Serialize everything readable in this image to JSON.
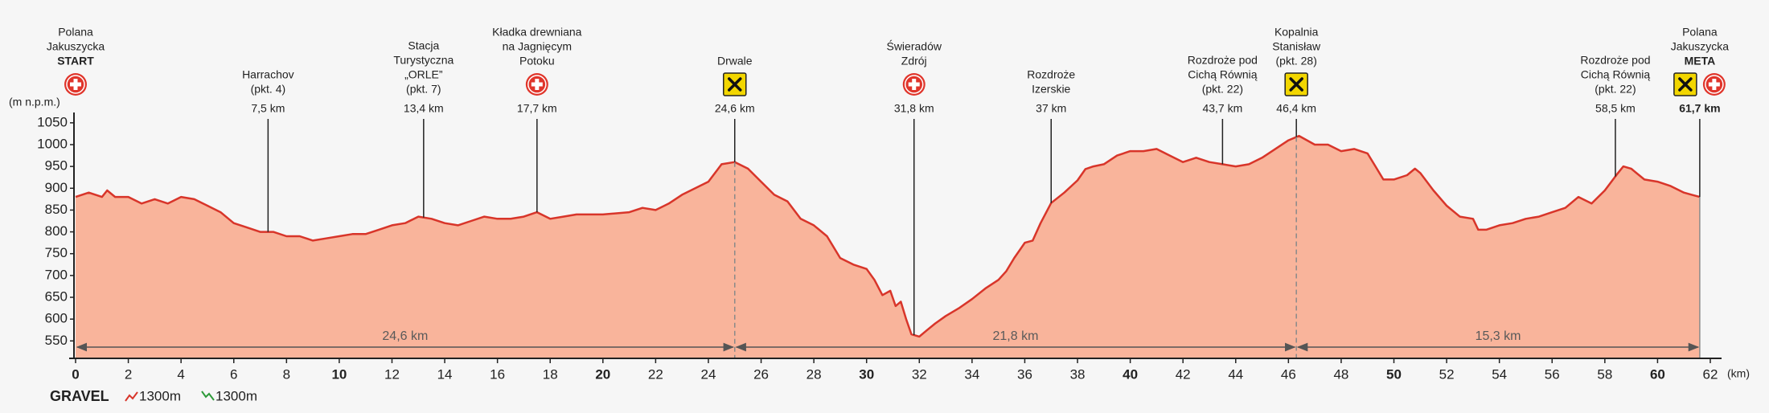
{
  "chart_data": {
    "type": "area",
    "y_label": "(m n.p.m.)",
    "x_label": "(km)",
    "x": [
      0,
      0.5,
      1,
      1.2,
      1.5,
      2,
      2.5,
      3,
      3.5,
      4,
      4.5,
      5,
      5.5,
      6,
      6.5,
      7,
      7.5,
      8,
      8.5,
      9,
      9.5,
      10,
      10.5,
      11,
      11.5,
      12,
      12.5,
      13,
      13.5,
      14,
      14.5,
      15,
      15.5,
      16,
      16.5,
      17,
      17.5,
      18,
      18.5,
      19,
      20,
      21,
      21.5,
      22,
      22.5,
      23,
      23.5,
      24,
      24.5,
      25,
      25.5,
      26,
      26.5,
      27,
      27.5,
      28,
      28.5,
      29,
      29.5,
      30,
      30.3,
      30.6,
      30.9,
      31.1,
      31.3,
      31.5,
      31.7,
      32,
      32.3,
      32.6,
      33,
      33.5,
      34,
      34.5,
      35,
      35.3,
      35.6,
      36,
      36.3,
      36.6,
      37,
      37.5,
      38,
      38.3,
      38.6,
      39,
      39.5,
      40,
      40.5,
      41,
      41.5,
      42,
      42.5,
      43,
      43.5,
      44,
      44.5,
      45,
      45.5,
      46,
      46.4,
      47,
      47.5,
      48,
      48.5,
      49,
      49.3,
      49.6,
      50,
      50.5,
      50.8,
      51,
      51.5,
      52,
      52.5,
      53,
      53.2,
      53.5,
      54,
      54.5,
      55,
      55.5,
      56,
      56.5,
      57,
      57.5,
      58,
      58.5,
      58.7,
      59,
      59.5,
      60,
      60.5,
      61,
      61.3,
      61.6
    ],
    "series": [
      {
        "name": "GRAVEL",
        "color": "#d8352a",
        "fill": "#f9b49b",
        "values": [
          880,
          890,
          880,
          895,
          880,
          880,
          865,
          875,
          865,
          880,
          875,
          860,
          845,
          820,
          810,
          800,
          800,
          790,
          790,
          780,
          785,
          790,
          795,
          795,
          805,
          815,
          820,
          835,
          830,
          820,
          815,
          825,
          835,
          830,
          830,
          835,
          845,
          830,
          835,
          840,
          840,
          845,
          855,
          850,
          865,
          885,
          900,
          915,
          955,
          960,
          945,
          915,
          885,
          870,
          830,
          815,
          790,
          740,
          725,
          715,
          690,
          655,
          665,
          630,
          640,
          600,
          565,
          560,
          575,
          590,
          607,
          625,
          646,
          670,
          690,
          710,
          740,
          775,
          780,
          820,
          866,
          890,
          918,
          944,
          950,
          955,
          975,
          985,
          985,
          990,
          975,
          960,
          970,
          960,
          955,
          950,
          955,
          970,
          990,
          1010,
          1020,
          1000,
          1000,
          985,
          990,
          980,
          950,
          920,
          920,
          930,
          945,
          935,
          895,
          860,
          835,
          830,
          805,
          805,
          815,
          820,
          830,
          835,
          845,
          855,
          880,
          865,
          895,
          935,
          950,
          945,
          920,
          915,
          905,
          890,
          885,
          880
        ]
      }
    ],
    "xlim": [
      0,
      62
    ],
    "ylim": [
      510,
      1070
    ],
    "xticks": [
      0,
      2,
      4,
      6,
      8,
      10,
      12,
      14,
      16,
      18,
      20,
      22,
      24,
      26,
      28,
      30,
      32,
      34,
      36,
      38,
      40,
      42,
      44,
      46,
      48,
      50,
      52,
      54,
      56,
      58,
      60,
      62
    ],
    "yticks": [
      550,
      600,
      650,
      700,
      750,
      800,
      850,
      900,
      950,
      1000,
      1050
    ],
    "waypoints": [
      {
        "name": [
          "Polana",
          "Jakuszycka"
        ],
        "tag": "START",
        "x": 0,
        "icons": [
          "medic"
        ]
      },
      {
        "name": [
          "Harrachov",
          "(pkt. 4)"
        ],
        "km": "7,5 km",
        "x": 7.3,
        "icons": []
      },
      {
        "name": [
          "Stacja",
          "Turystyczna",
          "„ORLE”",
          "(pkt. 7)"
        ],
        "km": "13,4 km",
        "x": 13.2,
        "icons": []
      },
      {
        "name": [
          "Kładka drewniana",
          "na Jagnięcym",
          "Potoku"
        ],
        "km": "17,7 km",
        "x": 17.5,
        "icons": [
          "medic"
        ]
      },
      {
        "name": [
          "Drwale"
        ],
        "km": "24,6 km",
        "x": 25,
        "icons": [
          "food"
        ]
      },
      {
        "name": [
          "Świeradów",
          "Zdrój"
        ],
        "km": "31,8 km",
        "x": 31.8,
        "icons": [
          "medic"
        ]
      },
      {
        "name": [
          "Rozdroże",
          "Izerskie"
        ],
        "km": "37 km",
        "x": 37,
        "icons": []
      },
      {
        "name": [
          "Rozdroże pod",
          "Cichą Równią",
          "(pkt. 22)"
        ],
        "km": "43,7 km",
        "x": 43.5,
        "icons": []
      },
      {
        "name": [
          "Kopalnia",
          "Stanisław",
          "(pkt. 28)"
        ],
        "km": "46,4 km",
        "x": 46.3,
        "icons": [
          "food"
        ]
      },
      {
        "name": [
          "Rozdroże pod",
          "Cichą Równią",
          "(pkt. 22)"
        ],
        "km": "58,5 km",
        "x": 58.4,
        "icons": []
      },
      {
        "name": [
          "Polana",
          "Jakuszycka"
        ],
        "tag": "META",
        "km": "61,7 km",
        "x": 61.6,
        "icons": [
          "food",
          "medic"
        ]
      }
    ],
    "segments": [
      {
        "from": 0,
        "to": 25,
        "label": "24,6 km"
      },
      {
        "from": 25,
        "to": 46.3,
        "label": "21,8 km"
      },
      {
        "from": 46.3,
        "to": 61.6,
        "label": "15,3 km"
      }
    ],
    "stats": {
      "ascent": "1300m",
      "descent": "1300m"
    }
  }
}
